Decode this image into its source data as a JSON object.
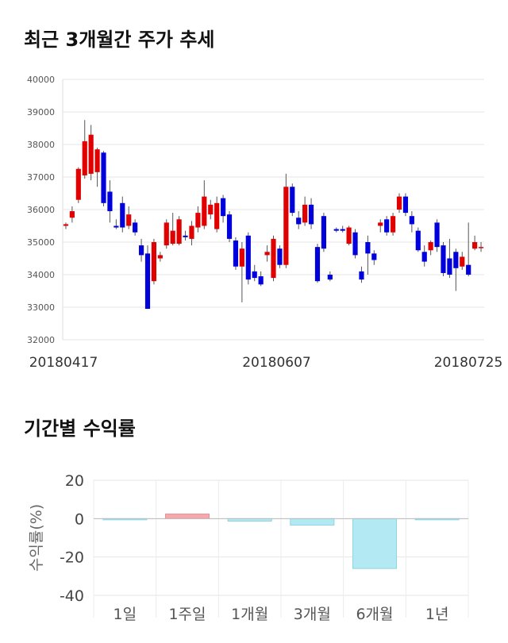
{
  "titles": {
    "price_trend": "최근 3개월간 주가 추세",
    "period_returns": "기간별 수익률"
  },
  "chart_data": [
    {
      "type": "candlestick",
      "title": "최근 3개월간 주가 추세",
      "ylim": [
        32000,
        40000
      ],
      "y_ticks": [
        "40000",
        "39000",
        "38000",
        "37000",
        "36000",
        "35000",
        "34000",
        "33000",
        "32000"
      ],
      "x_tick_labels": [
        "20180417",
        "20180607",
        "20180725"
      ],
      "grid": true,
      "colors": {
        "up": "#e00000",
        "down": "#0000dd"
      },
      "candles": [
        [
          35500,
          35550,
          35400,
          35600
        ],
        [
          35750,
          35950,
          35600,
          36100
        ],
        [
          36300,
          37250,
          36200,
          37300
        ],
        [
          37050,
          38100,
          36950,
          38750
        ],
        [
          37100,
          38300,
          36900,
          38600
        ],
        [
          37150,
          37850,
          36700,
          37900
        ],
        [
          37750,
          36200,
          36100,
          37800
        ],
        [
          36550,
          35950,
          35600,
          36900
        ],
        [
          35500,
          35450,
          35400,
          35700
        ],
        [
          36200,
          35450,
          35300,
          36400
        ],
        [
          35500,
          35850,
          35400,
          36100
        ],
        [
          35600,
          35300,
          35200,
          35700
        ],
        [
          34900,
          34600,
          34400,
          35100
        ],
        [
          34650,
          32950,
          32950,
          34900
        ],
        [
          33800,
          35000,
          33700,
          35100
        ],
        [
          34500,
          34600,
          34400,
          34700
        ],
        [
          34900,
          35600,
          34800,
          35700
        ],
        [
          34950,
          35350,
          34900,
          35900
        ],
        [
          34950,
          35700,
          34900,
          35800
        ],
        [
          35200,
          35150,
          35050,
          35350
        ],
        [
          35100,
          35500,
          34900,
          35650
        ],
        [
          35450,
          35900,
          35300,
          36100
        ],
        [
          35500,
          36400,
          35400,
          36900
        ],
        [
          35850,
          36150,
          35700,
          36300
        ],
        [
          35400,
          36200,
          35300,
          36400
        ],
        [
          36350,
          35800,
          35600,
          36450
        ],
        [
          35850,
          35100,
          35000,
          35950
        ],
        [
          35050,
          34250,
          34150,
          35150
        ],
        [
          34250,
          34800,
          33150,
          35000
        ],
        [
          35200,
          33850,
          33700,
          35300
        ],
        [
          34100,
          33900,
          33800,
          34300
        ],
        [
          33950,
          33700,
          33650,
          34100
        ],
        [
          34600,
          34700,
          34400,
          34900
        ],
        [
          33900,
          35100,
          33800,
          35200
        ],
        [
          34800,
          34300,
          34200,
          34900
        ],
        [
          34300,
          36700,
          34200,
          37100
        ],
        [
          36700,
          35900,
          35800,
          36800
        ],
        [
          35750,
          35550,
          35400,
          35950
        ],
        [
          35600,
          36150,
          35500,
          36400
        ],
        [
          36150,
          35550,
          35400,
          36350
        ],
        [
          34850,
          33800,
          33750,
          34950
        ],
        [
          35800,
          34800,
          34700,
          35900
        ],
        [
          34000,
          33850,
          33800,
          34100
        ],
        [
          35400,
          35350,
          35300,
          35450
        ],
        [
          35400,
          35350,
          35300,
          35500
        ],
        [
          34950,
          35450,
          34900,
          35500
        ],
        [
          35300,
          34600,
          34500,
          35400
        ],
        [
          34100,
          33850,
          33750,
          34250
        ],
        [
          35000,
          34650,
          34000,
          35200
        ],
        [
          34650,
          34450,
          34300,
          34750
        ],
        [
          35500,
          35600,
          35300,
          35700
        ],
        [
          35700,
          35300,
          35200,
          35800
        ],
        [
          35300,
          35800,
          35200,
          35900
        ],
        [
          36000,
          36400,
          35900,
          36500
        ],
        [
          36400,
          35900,
          35800,
          36500
        ],
        [
          35800,
          35550,
          35300,
          35950
        ],
        [
          35350,
          34750,
          34700,
          35450
        ],
        [
          34700,
          34400,
          34250,
          34900
        ],
        [
          34750,
          35000,
          34600,
          35050
        ],
        [
          35600,
          34850,
          34700,
          35700
        ],
        [
          34900,
          34050,
          33950,
          35000
        ],
        [
          34500,
          34000,
          33900,
          35100
        ],
        [
          34700,
          34200,
          33500,
          34800
        ],
        [
          34250,
          34550,
          34150,
          34700
        ],
        [
          34300,
          34000,
          33950,
          35600
        ],
        [
          34800,
          35000,
          34750,
          35200
        ],
        [
          34850,
          34850,
          34700,
          35000
        ]
      ]
    },
    {
      "type": "bar",
      "title": "기간별 수익률",
      "ylabel": "수익률(%)",
      "categories": [
        "1일",
        "1주일",
        "1개월",
        "3개월",
        "6개월",
        "1년"
      ],
      "values": [
        0,
        2.4,
        -1.3,
        -3.4,
        -26,
        -0.5
      ],
      "ylim": [
        -40,
        20
      ],
      "y_ticks": [
        "20",
        "0",
        "-20",
        "-40"
      ],
      "grid": true,
      "colors": {
        "positive": "#f7a8ad",
        "negative": "#b3e9f3"
      }
    }
  ]
}
